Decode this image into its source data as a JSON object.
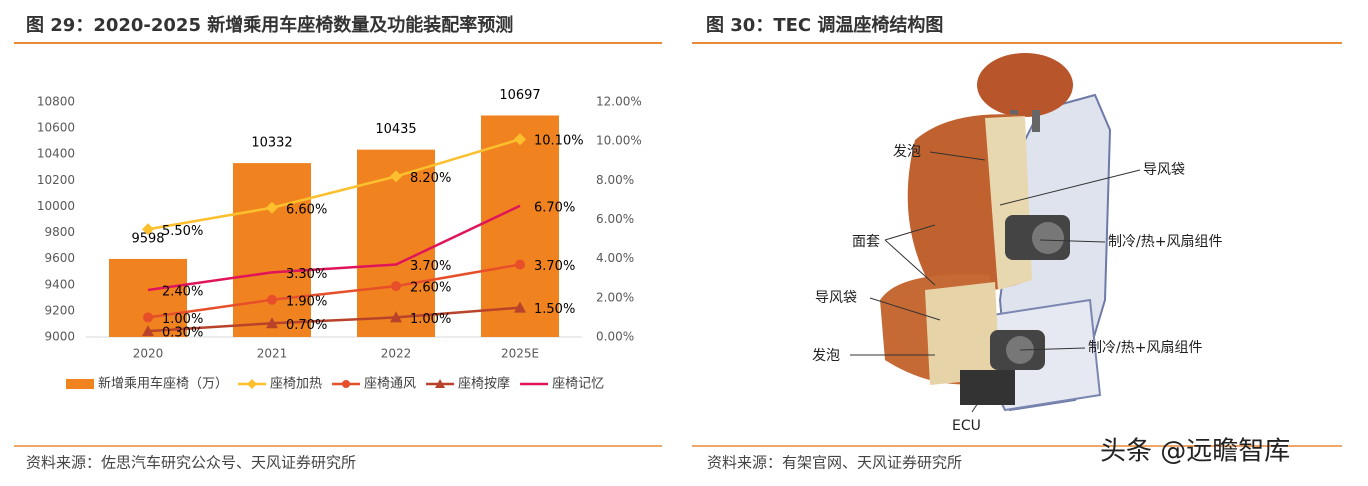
{
  "chart_data": {
    "type": "bar-line",
    "title": "图 29：2020-2025 新增乘用车座椅数量及功能装配率预测",
    "source": "资料来源：佐思汽车研究公众号、天风证券研究所",
    "categories": [
      "2020",
      "2021",
      "2022",
      "2025E"
    ],
    "ylim": [
      9000,
      10800
    ],
    "yticks": [
      9000,
      9200,
      9400,
      9600,
      9800,
      10000,
      10200,
      10400,
      10600,
      10800
    ],
    "y2lim": [
      0,
      12
    ],
    "y2ticks": [
      {
        "value": 0,
        "label": "0.00%"
      },
      {
        "value": 2,
        "label": "2.00%"
      },
      {
        "value": 4,
        "label": "4.00%"
      },
      {
        "value": 6,
        "label": "6.00%"
      },
      {
        "value": 8,
        "label": "8.00%"
      },
      {
        "value": 10,
        "label": "10.00%"
      },
      {
        "value": 12,
        "label": "12.00%"
      }
    ],
    "legend": "bottom",
    "series": [
      {
        "name": "新增乘用车座椅（万）",
        "type": "bar",
        "color": "#f0831f",
        "values": [
          9598,
          10332,
          10435,
          10697
        ]
      },
      {
        "name": "座椅加热",
        "type": "line",
        "axis": "y2",
        "marker": "diamond",
        "color": "#fcc02e",
        "values": [
          5.5,
          6.6,
          8.2,
          10.1
        ],
        "value_labels": [
          "5.50%",
          "6.60%",
          "8.20%",
          "10.10%"
        ]
      },
      {
        "name": "座椅通风",
        "type": "line",
        "axis": "y2",
        "marker": "circle",
        "color": "#e64f2a",
        "values": [
          1.0,
          1.9,
          2.6,
          3.7
        ],
        "value_labels": [
          "1.00%",
          "1.90%",
          "2.60%",
          "3.70%"
        ]
      },
      {
        "name": "座椅按摩",
        "type": "line",
        "axis": "y2",
        "marker": "triangle",
        "color": "#b8432a",
        "values": [
          0.3,
          0.7,
          1.0,
          1.5
        ],
        "value_labels": [
          "0.30%",
          "0.70%",
          "1.00%",
          "1.50%"
        ]
      },
      {
        "name": "座椅记忆",
        "type": "line",
        "axis": "y2",
        "marker": "none",
        "color": "#e0145a",
        "values": [
          2.4,
          3.3,
          3.7,
          6.7
        ],
        "value_labels": [
          "2.40%",
          "3.30%",
          "3.70%",
          "6.70%"
        ]
      }
    ]
  },
  "figure_30": {
    "title": "图 30：TEC 调温座椅结构图",
    "labels": [
      "发泡",
      "导风袋",
      "面套",
      "制冷/热+风扇组件",
      "导风袋",
      "制冷/热+风扇组件",
      "发泡",
      "ECU"
    ],
    "source": "资料来源：有架官网、天风证券研究所"
  },
  "watermark": "头条 @远瞻智库"
}
